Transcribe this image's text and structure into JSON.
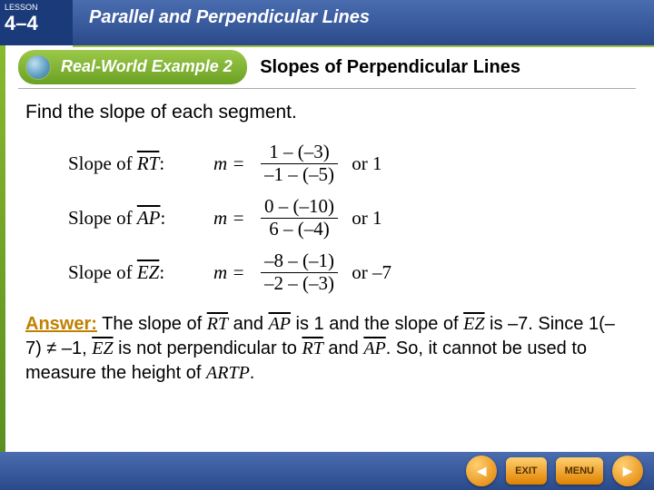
{
  "lesson": {
    "label": "LESSON",
    "number": "4–4"
  },
  "chapter_title": "Parallel and Perpendicular Lines",
  "example": {
    "badge": "Real-World Example 2",
    "title": "Slopes of Perpendicular Lines"
  },
  "instruction": "Find the slope of each segment.",
  "equations": [
    {
      "segment": "RT",
      "num": "1 – (–3)",
      "den": "–1 – (–5)",
      "result": "1"
    },
    {
      "segment": "AP",
      "num": "0 – (–10)",
      "den": "6 – (–4)",
      "result": "1"
    },
    {
      "segment": "EZ",
      "num": "–8 – (–1)",
      "den": "–2 – (–3)",
      "result": "–7"
    }
  ],
  "answer": {
    "label": "Answer:",
    "t1": "  The slope of ",
    "seg1": "RT",
    "t2": " and ",
    "seg2": "AP",
    "t3": " is 1 and the slope of ",
    "seg3": "EZ",
    "t4": " is –7. Since 1(–7) ≠ –1, ",
    "seg4": "EZ",
    "t5": " is not perpendicular to ",
    "seg5": "RT",
    "t6": " and ",
    "seg6": "AP",
    "t7": ". So, it cannot be used to measure the height of ",
    "shape": "ARTP",
    "t8": "."
  },
  "nav": {
    "exit": "EXIT",
    "menu": "MENU"
  },
  "colors": {
    "answer_label": "#c08000",
    "header_bg": "#2a4a8a",
    "green": "#6aa023"
  }
}
